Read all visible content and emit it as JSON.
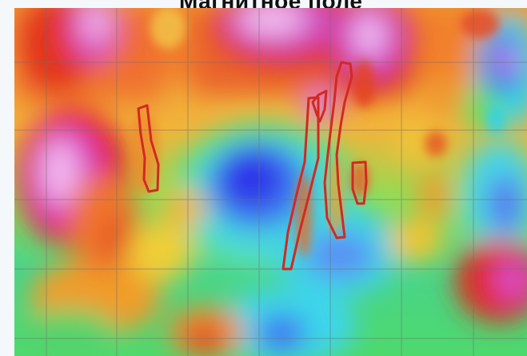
{
  "map": {
    "title": "Магнитное поле",
    "colors": {
      "blue": "#2b33e6",
      "cyan": "#39d7ef",
      "green": "#62df6b",
      "yellow": "#f2d234",
      "orange": "#f58a2a",
      "red": "#e3211c",
      "magenta": "#d441d0",
      "pink": "#f1b6f0",
      "outline": "#d12a21",
      "grid": "#6f6f6f"
    },
    "legend": [],
    "notes": []
  }
}
